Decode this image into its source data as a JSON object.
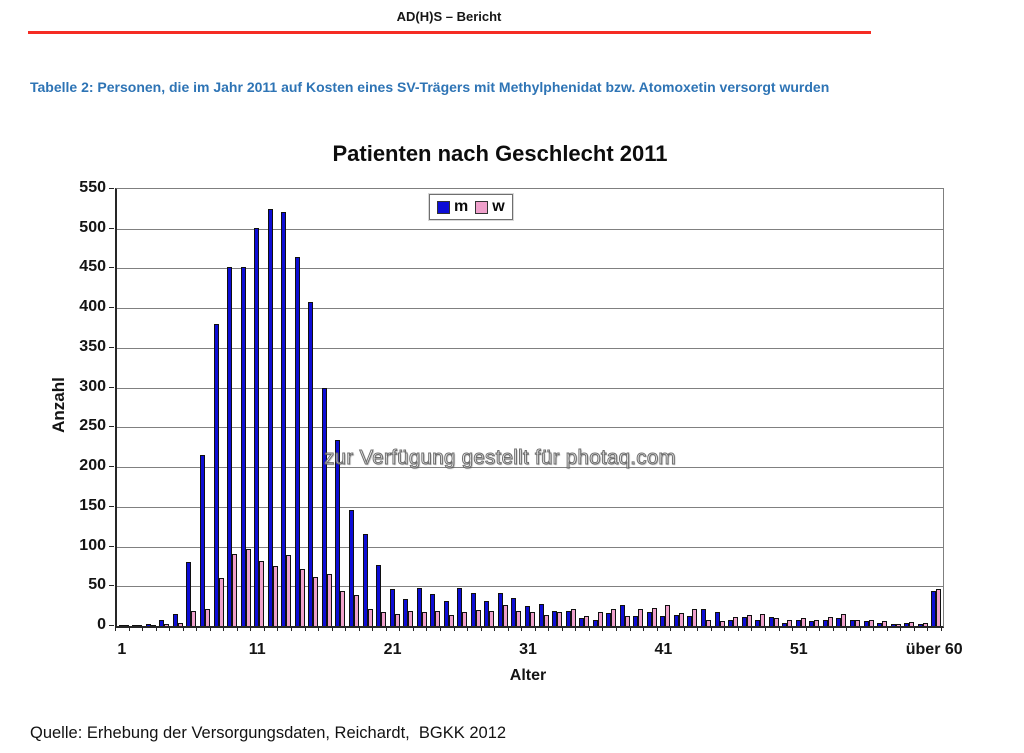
{
  "page": {
    "header_title": "AD(H)S – Bericht",
    "caption": "Tabelle 2: Personen, die im Jahr 2011 auf Kosten eines SV-Trägers mit Methylphenidat bzw. Atomoxetin versorgt wurden",
    "watermark": "zur Verfügung gestellt für photaq.com",
    "source": "Quelle: Erhebung der Versorgungsdaten, Reichardt,  BGKK 2012",
    "accent_red": "#f52c23",
    "caption_blue": "#2e74b5"
  },
  "chart_data": {
    "type": "bar",
    "title": "Patienten nach Geschlecht 2011",
    "xlabel": "Alter",
    "ylabel": "Anzahl",
    "ylim": [
      0,
      550
    ],
    "ytick_step": 50,
    "xtick_every": 10,
    "grid": true,
    "legend_position": "top-center",
    "categories": [
      "1",
      "2",
      "3",
      "4",
      "5",
      "6",
      "7",
      "8",
      "9",
      "10",
      "11",
      "12",
      "13",
      "14",
      "15",
      "16",
      "17",
      "18",
      "19",
      "20",
      "21",
      "22",
      "23",
      "24",
      "25",
      "26",
      "27",
      "28",
      "29",
      "30",
      "31",
      "32",
      "33",
      "34",
      "35",
      "36",
      "37",
      "38",
      "39",
      "40",
      "41",
      "42",
      "43",
      "44",
      "45",
      "46",
      "47",
      "48",
      "49",
      "50",
      "51",
      "52",
      "53",
      "54",
      "55",
      "56",
      "57",
      "58",
      "59",
      "60",
      "über 60"
    ],
    "series": [
      {
        "name": "m",
        "color": "#0d0dd6",
        "values": [
          1,
          1,
          2,
          7,
          15,
          80,
          215,
          380,
          452,
          452,
          501,
          525,
          521,
          465,
          408,
          300,
          234,
          146,
          116,
          77,
          47,
          34,
          48,
          40,
          31,
          48,
          42,
          31,
          41,
          35,
          25,
          28,
          19,
          19,
          10,
          7,
          16,
          27,
          13,
          18,
          13,
          14,
          13,
          21,
          17,
          8,
          11,
          8,
          11,
          4,
          7,
          6,
          8,
          10,
          8,
          6,
          4,
          2,
          4,
          3,
          44
        ]
      },
      {
        "name": "w",
        "color": "#efa0cb",
        "values": [
          1,
          1,
          1,
          2,
          4,
          19,
          21,
          61,
          91,
          97,
          82,
          76,
          89,
          72,
          62,
          66,
          44,
          39,
          22,
          17,
          15,
          19,
          18,
          19,
          14,
          17,
          20,
          19,
          27,
          19,
          17,
          14,
          18,
          21,
          13,
          18,
          21,
          13,
          22,
          23,
          26,
          16,
          21,
          8,
          6,
          11,
          14,
          15,
          10,
          7,
          10,
          8,
          11,
          15,
          8,
          8,
          6,
          3,
          5,
          4,
          47
        ]
      }
    ]
  }
}
